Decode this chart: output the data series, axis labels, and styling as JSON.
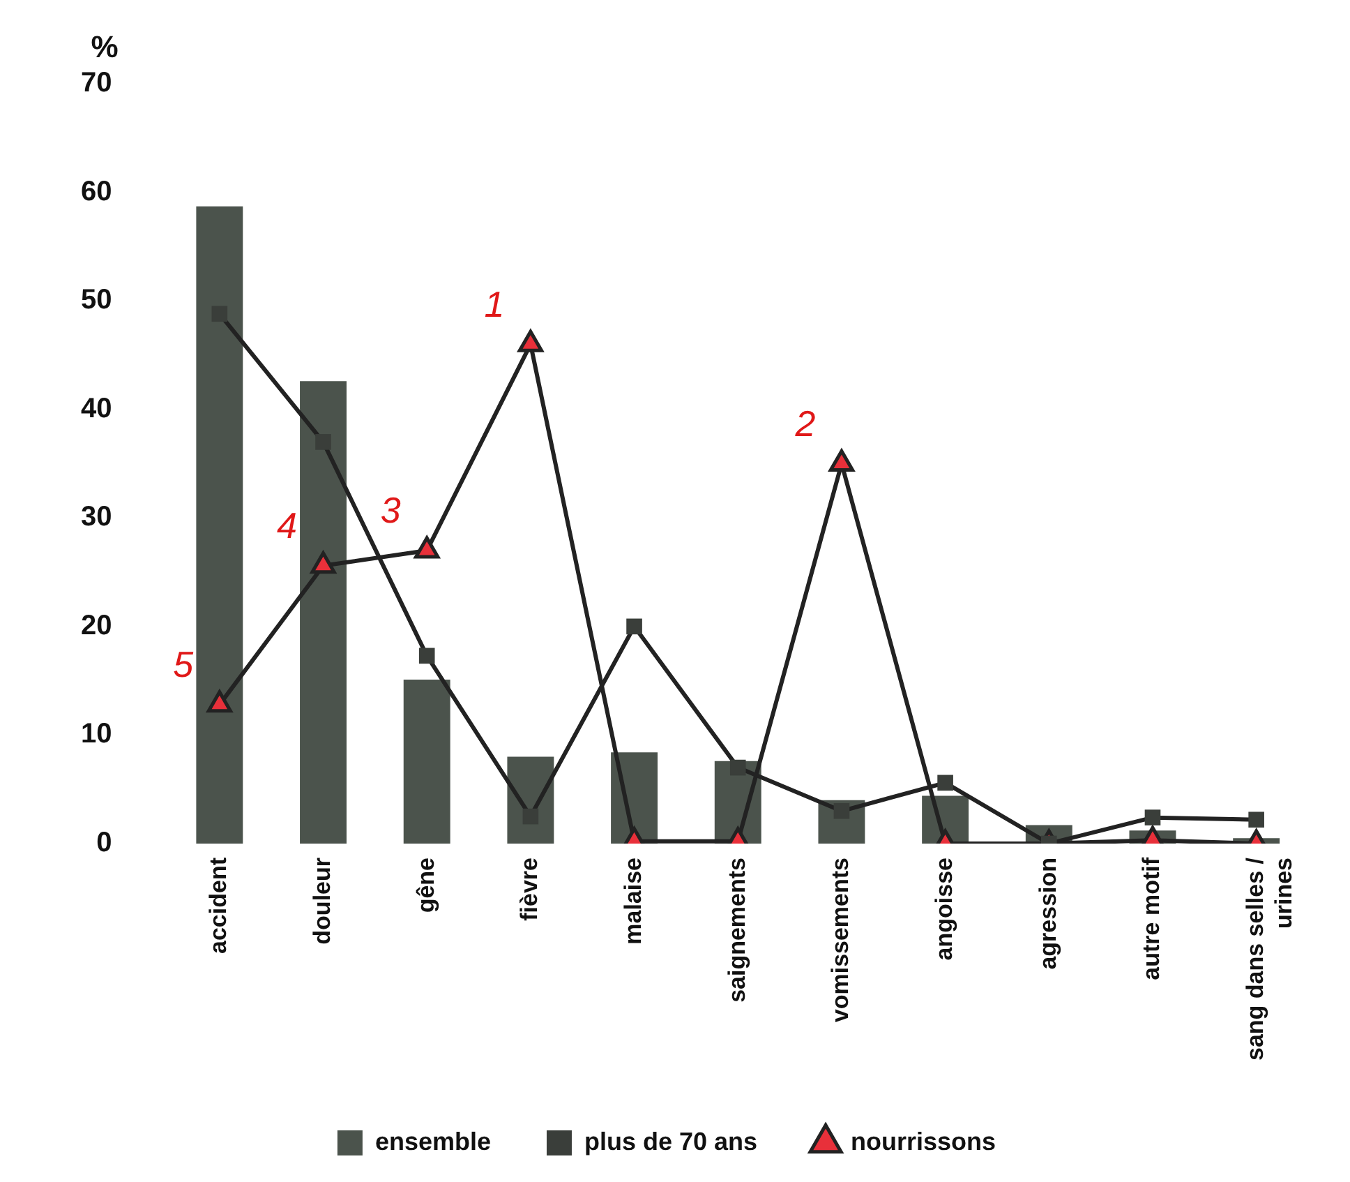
{
  "chart_data": {
    "type": "bar",
    "ylabel": "%",
    "categories": [
      "accident",
      "douleur",
      "gêne",
      "fièvre",
      "malaise",
      "saignements",
      "vomissements",
      "angoisse",
      "agression",
      "autre motif",
      "sang dans selles / urines"
    ],
    "series": [
      {
        "name": "ensemble",
        "color": "#4b534c",
        "values": [
          58.7,
          42.6,
          15.1,
          8.0,
          8.4,
          7.6,
          4.0,
          4.4,
          1.7,
          1.2,
          0.5
        ]
      },
      {
        "name": "plus de 70 ans",
        "type": "line",
        "marker": "square",
        "color": "#3a3e3a",
        "values": [
          48.8,
          37.0,
          17.3,
          2.5,
          20.0,
          7.0,
          3.0,
          5.6,
          0.0,
          2.4,
          2.2
        ]
      },
      {
        "name": "nourrissons",
        "type": "line",
        "marker": "triangle",
        "color": "#e8303a",
        "values": [
          12.8,
          25.6,
          27.0,
          46.0,
          0.2,
          0.2,
          35.0,
          0.0,
          0.0,
          0.3,
          0.0
        ]
      }
    ],
    "ylim": [
      0,
      70
    ],
    "yticks": [
      0,
      10,
      20,
      30,
      40,
      50,
      60,
      70
    ],
    "grid": false,
    "legend": "bottom",
    "annotations": [
      {
        "text": "1",
        "x": "fièvre",
        "y": 46.0
      },
      {
        "text": "2",
        "x": "vomissements",
        "y": 35.0
      },
      {
        "text": "3",
        "x": "gêne",
        "y": 27.0
      },
      {
        "text": "4",
        "x": "douleur",
        "y": 25.6
      },
      {
        "text": "5",
        "x": "accident",
        "y": 12.8
      }
    ]
  }
}
